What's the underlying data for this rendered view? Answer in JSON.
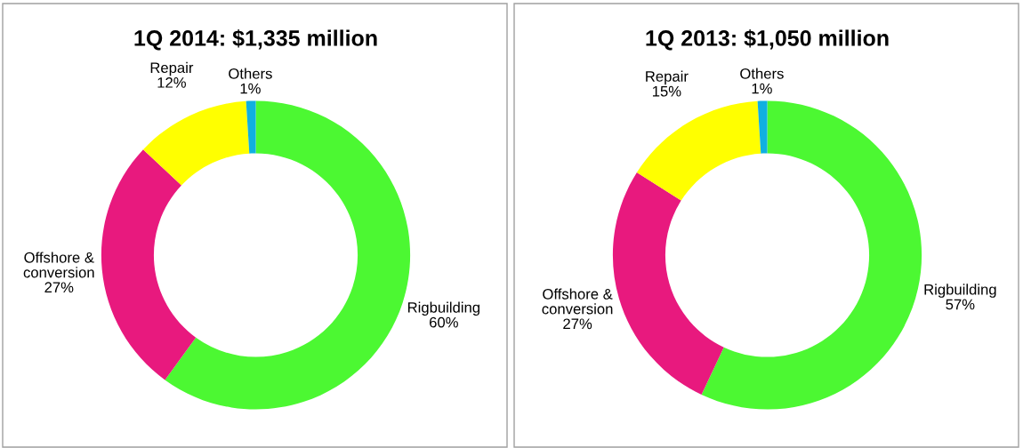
{
  "chart_data": [
    {
      "type": "donut",
      "title": "1Q 2014: $1,335 million",
      "categories": [
        "Rigbuilding",
        "Offshore & conversion",
        "Repair",
        "Others"
      ],
      "values": [
        60,
        27,
        12,
        1
      ],
      "colors": [
        "#4cf832",
        "#e8197e",
        "#ffff00",
        "#10b0e0"
      ],
      "value_labels": [
        "60%",
        "27%",
        "12%",
        "1%"
      ]
    },
    {
      "type": "donut",
      "title": "1Q 2013: $1,050 million",
      "categories": [
        "Rigbuilding",
        "Offshore & conversion",
        "Repair",
        "Others"
      ],
      "values": [
        57,
        27,
        15,
        1
      ],
      "colors": [
        "#4cf832",
        "#e8197e",
        "#ffff00",
        "#10b0e0"
      ],
      "value_labels": [
        "57%",
        "27%",
        "15%",
        "1%"
      ]
    }
  ]
}
